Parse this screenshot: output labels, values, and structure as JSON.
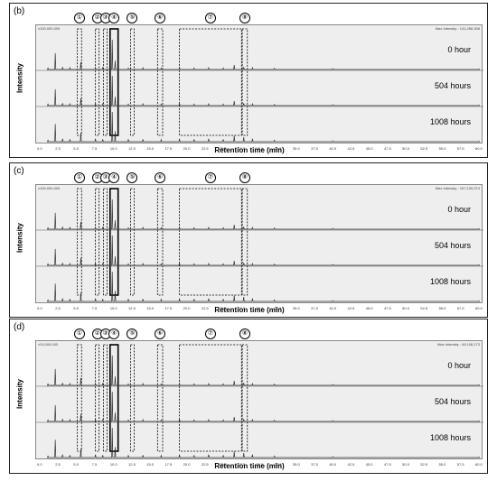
{
  "figure": {
    "panels": [
      {
        "id": "b",
        "label": "(b)",
        "header_left": "x100,000,000",
        "header_right": "Max Intensity : 141,266,308"
      },
      {
        "id": "c",
        "label": "(c)",
        "header_left": "x100,000,000",
        "header_right": "Max Intensity : 157,109,374"
      },
      {
        "id": "d",
        "label": "(d)",
        "header_left": "x10,000,000",
        "header_right": "Max Intensity : 45,108,173"
      }
    ],
    "ylabel": "Intensity",
    "xlabel": "Retention time (min)",
    "trace_labels": [
      "0 hour",
      "504 hours",
      "1008 hours"
    ],
    "peak_markers": [
      "①",
      "②",
      "③",
      "④",
      "⑤",
      "⑥",
      "⑦",
      "⑧"
    ]
  },
  "chart_data": {
    "type": "line",
    "xlabel": "Retention time (min)",
    "ylabel": "Intensity",
    "xlim": [
      0,
      60
    ],
    "x_ticks": [
      0.0,
      2.5,
      5.0,
      7.5,
      10.0,
      12.5,
      15.0,
      17.5,
      20.0,
      22.5,
      25.0,
      27.5,
      30.0,
      32.5,
      35.0,
      37.5,
      40.0,
      42.5,
      45.0,
      47.5,
      50.0,
      52.5,
      55.0,
      57.5,
      60.0
    ],
    "series": [
      {
        "name": "0 hour",
        "x": [
          1.0,
          2.0,
          3.0,
          4.0,
          5.5,
          7.5,
          8.5,
          9.8,
          10.2,
          12.0,
          14.0,
          16.5,
          19.0,
          21.0,
          23.0,
          25.0,
          26.5,
          27.8,
          29.0,
          32.0,
          40.0,
          60.0
        ],
        "y": [
          0.05,
          0.55,
          0.08,
          0.06,
          0.25,
          0.07,
          0.06,
          1.0,
          0.3,
          0.05,
          0.06,
          0.05,
          0.07,
          0.05,
          0.06,
          0.05,
          0.15,
          0.08,
          0.06,
          0.04,
          0.03,
          0.02
        ]
      },
      {
        "name": "504 hours",
        "x": [
          1.0,
          2.0,
          3.0,
          4.0,
          5.5,
          7.5,
          8.5,
          9.8,
          10.2,
          12.0,
          14.0,
          16.5,
          19.0,
          21.0,
          23.0,
          25.0,
          26.5,
          27.8,
          29.0,
          32.0,
          40.0,
          60.0
        ],
        "y": [
          0.05,
          0.55,
          0.08,
          0.06,
          0.25,
          0.07,
          0.06,
          1.0,
          0.3,
          0.05,
          0.06,
          0.05,
          0.07,
          0.05,
          0.06,
          0.05,
          0.15,
          0.08,
          0.06,
          0.04,
          0.03,
          0.02
        ]
      },
      {
        "name": "1008 hours",
        "x": [
          1.0,
          2.0,
          3.0,
          4.0,
          5.5,
          7.5,
          8.5,
          9.8,
          10.2,
          12.0,
          14.0,
          16.5,
          19.0,
          21.0,
          23.0,
          25.0,
          26.5,
          27.8,
          29.0,
          32.0,
          40.0,
          60.0
        ],
        "y": [
          0.05,
          0.6,
          0.1,
          0.08,
          0.3,
          0.1,
          0.08,
          1.0,
          0.35,
          0.08,
          0.08,
          0.07,
          0.1,
          0.08,
          0.1,
          0.08,
          0.2,
          0.15,
          0.1,
          0.05,
          0.03,
          0.02
        ]
      }
    ],
    "peak_regions": [
      {
        "label": "①",
        "x": [
          5.0,
          5.6
        ]
      },
      {
        "label": "②",
        "x": [
          7.5,
          8.0
        ]
      },
      {
        "label": "③",
        "x": [
          8.6,
          9.1
        ]
      },
      {
        "label": "④",
        "x": [
          9.5,
          10.6
        ]
      },
      {
        "label": "⑤",
        "x": [
          12.3,
          12.8
        ]
      },
      {
        "label": "⑥",
        "x": [
          16.0,
          16.7
        ]
      },
      {
        "label": "⑦",
        "x": [
          19.0,
          27.5
        ]
      },
      {
        "label": "⑧",
        "x": [
          27.6,
          28.3
        ]
      }
    ]
  }
}
